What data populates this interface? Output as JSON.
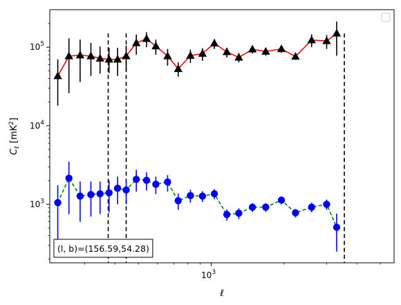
{
  "chart_data": {
    "type": "scatter",
    "xscale": "log",
    "yscale": "log",
    "xlim": [
      215,
      5700
    ],
    "ylim": [
      180,
      300000
    ],
    "xticks": [
      {
        "value": 1000,
        "label": "10",
        "exp": "3"
      }
    ],
    "yticks": [
      {
        "value": 1000,
        "label": "10",
        "exp": "3"
      },
      {
        "value": 10000,
        "label": "10",
        "exp": "4"
      },
      {
        "value": 100000,
        "label": "10",
        "exp": "5"
      }
    ],
    "xlabel": "ℓ",
    "ylabel": "C_ℓ  [mK²]",
    "legend": "upper right (empty)",
    "grid": false,
    "annotation": "(l, b)=(156.59,54.28)",
    "vlines": {
      "x": [
        375,
        445,
        3550
      ],
      "style": "dashed",
      "color": "#000000"
    },
    "series": [
      {
        "color": "#000000",
        "line_color": "#ff0000",
        "line_style": "solid",
        "marker": "triangle",
        "points": [
          {
            "x": 232,
            "y": 43000,
            "lo": 18000,
            "hi": 70000
          },
          {
            "x": 258,
            "y": 77000,
            "lo": 26000,
            "hi": 130000
          },
          {
            "x": 287,
            "y": 79000,
            "lo": 36000,
            "hi": 125000
          },
          {
            "x": 318,
            "y": 77000,
            "lo": 43000,
            "hi": 113000
          },
          {
            "x": 347,
            "y": 72000,
            "lo": 46000,
            "hi": 102000
          },
          {
            "x": 378,
            "y": 70000,
            "lo": 47000,
            "hi": 98000
          },
          {
            "x": 410,
            "y": 70000,
            "lo": 43000,
            "hi": 98000
          },
          {
            "x": 445,
            "y": 77000,
            "lo": 50000,
            "hi": 105000
          },
          {
            "x": 490,
            "y": 113000,
            "lo": 80000,
            "hi": 145000
          },
          {
            "x": 540,
            "y": 128000,
            "lo": 100000,
            "hi": 155000
          },
          {
            "x": 590,
            "y": 103000,
            "lo": 80000,
            "hi": 125000
          },
          {
            "x": 660,
            "y": 77000,
            "lo": 58000,
            "hi": 95000
          },
          {
            "x": 730,
            "y": 53000,
            "lo": 42000,
            "hi": 64000
          },
          {
            "x": 820,
            "y": 78000,
            "lo": 63000,
            "hi": 93000
          },
          {
            "x": 920,
            "y": 83000,
            "lo": 67000,
            "hi": 97000
          },
          {
            "x": 1030,
            "y": 112000,
            "lo": 95000,
            "hi": 127000
          },
          {
            "x": 1160,
            "y": 87000,
            "lo": 74000,
            "hi": 98000
          },
          {
            "x": 1300,
            "y": 74000,
            "lo": 64000,
            "hi": 84000
          },
          {
            "x": 1480,
            "y": 94000,
            "lo": 83000,
            "hi": 104000
          },
          {
            "x": 1680,
            "y": 88000,
            "lo": 78000,
            "hi": 98000
          },
          {
            "x": 1950,
            "y": 95000,
            "lo": 85000,
            "hi": 105000
          },
          {
            "x": 2230,
            "y": 76000,
            "lo": 69000,
            "hi": 84000
          },
          {
            "x": 2600,
            "y": 123000,
            "lo": 100000,
            "hi": 146000
          },
          {
            "x": 3000,
            "y": 120000,
            "lo": 95000,
            "hi": 143000
          },
          {
            "x": 3300,
            "y": 150000,
            "lo": 78000,
            "hi": 212000
          }
        ]
      },
      {
        "color": "#0000ff",
        "line_color": "#008000",
        "line_style": "dashed",
        "marker": "circle",
        "points": [
          {
            "x": 232,
            "y": 1050,
            "lo": 340,
            "hi": 1750
          },
          {
            "x": 258,
            "y": 2150,
            "lo": 750,
            "hi": 3500
          },
          {
            "x": 287,
            "y": 1270,
            "lo": 600,
            "hi": 1950
          },
          {
            "x": 318,
            "y": 1330,
            "lo": 700,
            "hi": 1950
          },
          {
            "x": 347,
            "y": 1360,
            "lo": 750,
            "hi": 1950
          },
          {
            "x": 378,
            "y": 1400,
            "lo": 790,
            "hi": 2000
          },
          {
            "x": 410,
            "y": 1600,
            "lo": 1000,
            "hi": 2250
          },
          {
            "x": 445,
            "y": 1520,
            "lo": 1000,
            "hi": 2050
          },
          {
            "x": 490,
            "y": 2080,
            "lo": 1450,
            "hi": 2750
          },
          {
            "x": 540,
            "y": 2020,
            "lo": 1500,
            "hi": 2550
          },
          {
            "x": 590,
            "y": 1800,
            "lo": 1350,
            "hi": 2250
          },
          {
            "x": 660,
            "y": 1920,
            "lo": 1450,
            "hi": 2350
          },
          {
            "x": 730,
            "y": 1110,
            "lo": 850,
            "hi": 1370
          },
          {
            "x": 820,
            "y": 1290,
            "lo": 1050,
            "hi": 1530
          },
          {
            "x": 920,
            "y": 1270,
            "lo": 1070,
            "hi": 1470
          },
          {
            "x": 1030,
            "y": 1360,
            "lo": 1160,
            "hi": 1560
          },
          {
            "x": 1160,
            "y": 740,
            "lo": 620,
            "hi": 860
          },
          {
            "x": 1300,
            "y": 770,
            "lo": 650,
            "hi": 890
          },
          {
            "x": 1480,
            "y": 920,
            "lo": 800,
            "hi": 1030
          },
          {
            "x": 1680,
            "y": 920,
            "lo": 800,
            "hi": 1030
          },
          {
            "x": 1950,
            "y": 1130,
            "lo": 1000,
            "hi": 1250
          },
          {
            "x": 2230,
            "y": 780,
            "lo": 680,
            "hi": 870
          },
          {
            "x": 2600,
            "y": 920,
            "lo": 790,
            "hi": 1050
          },
          {
            "x": 3000,
            "y": 1000,
            "lo": 850,
            "hi": 1150
          },
          {
            "x": 3300,
            "y": 510,
            "lo": 250,
            "hi": 760
          }
        ]
      }
    ]
  }
}
